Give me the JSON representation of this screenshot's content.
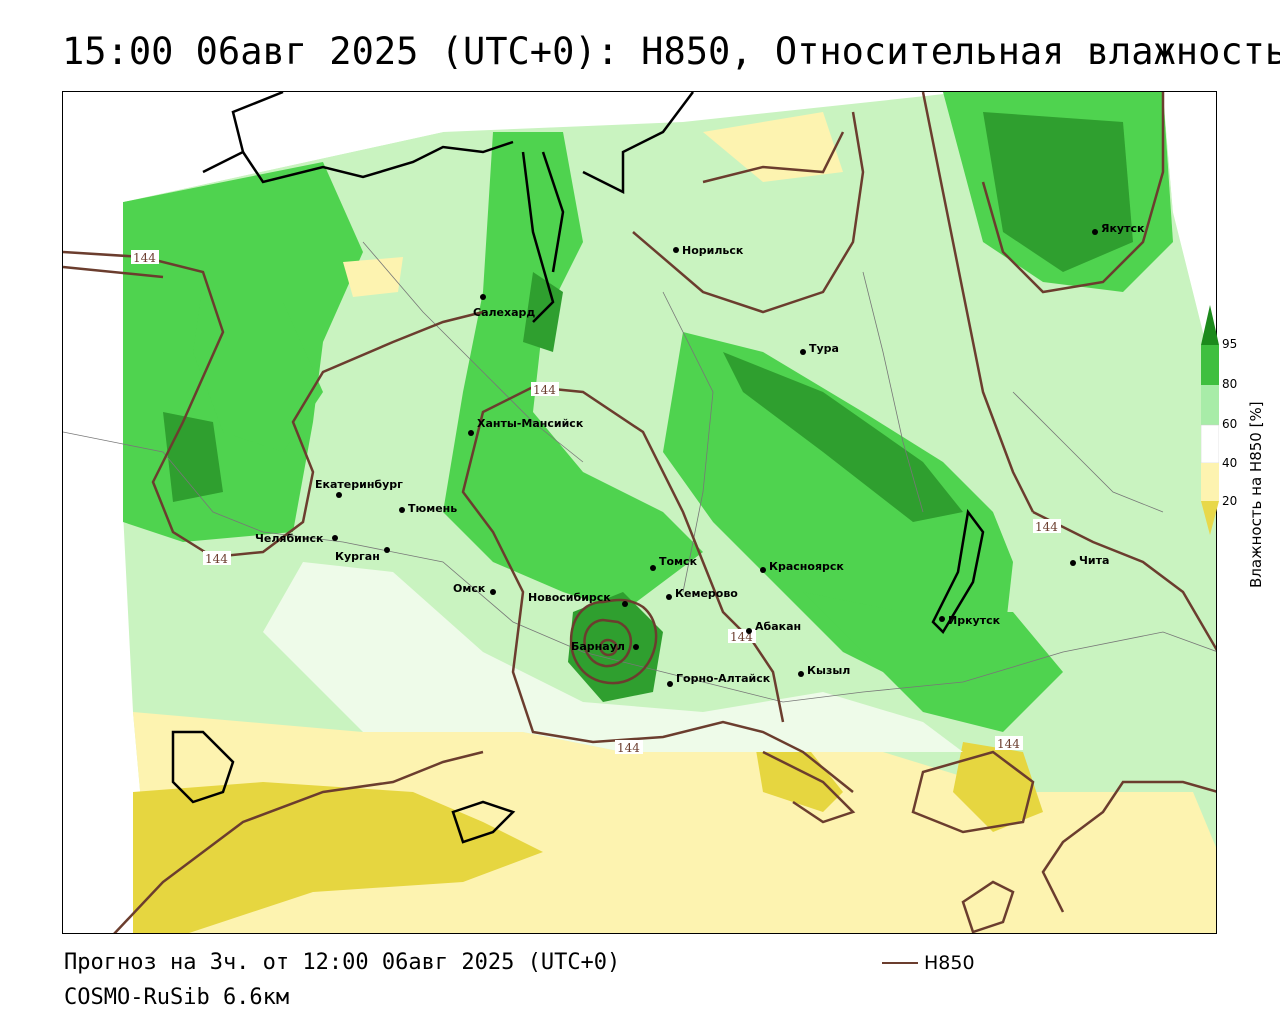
{
  "title": "15:00 06авг 2025 (UTC+0): H850, Относительная влажность",
  "footer": {
    "forecast": "Прогноз на 3ч. от 12:00 06авг 2025 (UTC+0)",
    "model": "COSMO-RuSib 6.6км"
  },
  "legend": {
    "line_label": "H850",
    "line_color": "#6b3d2e"
  },
  "colorbar": {
    "label": "Влажность на H850 [%]",
    "ticks": [
      "95",
      "80",
      "60",
      "40",
      "20"
    ],
    "colors": [
      "#1c8a1c",
      "#3fbf3f",
      "#a8eca8",
      "#ffffff",
      "#fdf3b0",
      "#e8d84a"
    ]
  },
  "cities": [
    {
      "name": "Норильск"
    },
    {
      "name": "Якутск"
    },
    {
      "name": "Салехард"
    },
    {
      "name": "Тура"
    },
    {
      "name": "Ханты-Мансийск"
    },
    {
      "name": "Екатеринбург"
    },
    {
      "name": "Тюмень"
    },
    {
      "name": "Челябинск"
    },
    {
      "name": "Курган"
    },
    {
      "name": "Томск"
    },
    {
      "name": "Красноярск"
    },
    {
      "name": "Омск"
    },
    {
      "name": "Новосибирск"
    },
    {
      "name": "Кемерово"
    },
    {
      "name": "Абакан"
    },
    {
      "name": "Барнаул"
    },
    {
      "name": "Горно-Алтайск"
    },
    {
      "name": "Кызыл"
    },
    {
      "name": "Иркутск"
    },
    {
      "name": "Чита"
    }
  ],
  "isoline_labels": [
    "144",
    "144",
    "144",
    "144",
    "144",
    "144",
    "144"
  ]
}
